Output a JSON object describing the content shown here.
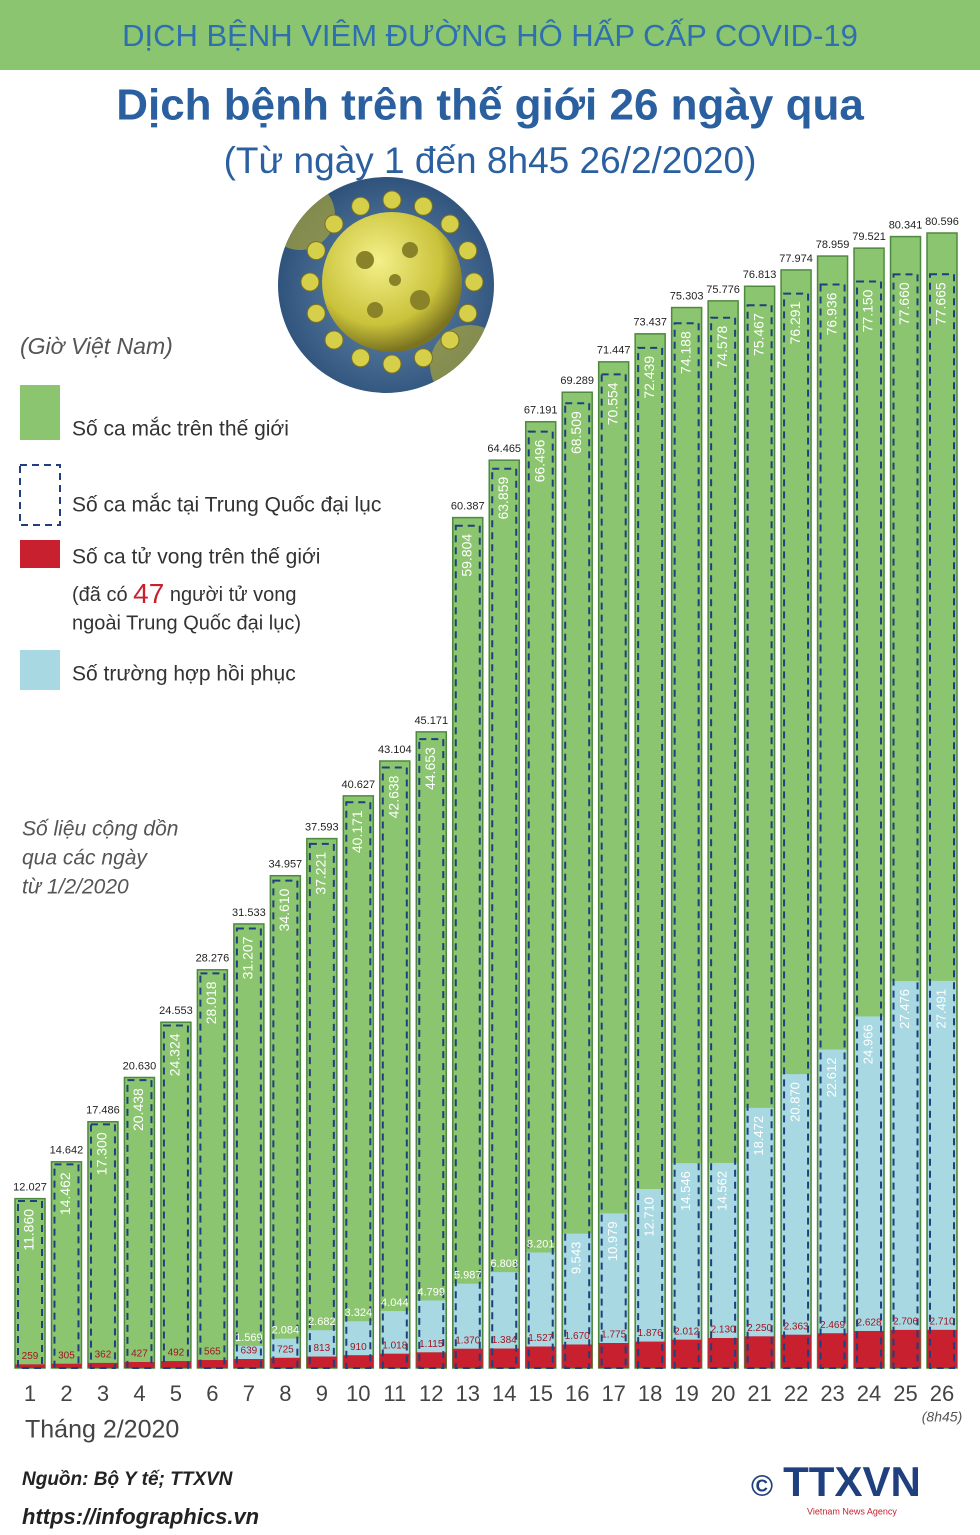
{
  "header": "DỊCH BỆNH VIÊM ĐƯỜNG HÔ HẤP CẤP COVID-19",
  "chart_data": {
    "type": "bar",
    "title": "Dịch bệnh trên thế giới 26 ngày qua",
    "subtitle": "(Từ ngày 1 đến 8h45 26/2/2020)",
    "timezone_note": "(Giờ Việt Nam)",
    "cumulative_note": [
      "Số liệu cộng dồn",
      "qua các ngày",
      "từ 1/2/2020"
    ],
    "x_label": "Tháng 2/2020",
    "last_category_note": "(8h45)",
    "categories": [
      "1",
      "2",
      "3",
      "4",
      "5",
      "6",
      "7",
      "8",
      "9",
      "10",
      "11",
      "12",
      "13",
      "14",
      "15",
      "16",
      "17",
      "18",
      "19",
      "20",
      "21",
      "22",
      "23",
      "24",
      "25",
      "26"
    ],
    "series": [
      {
        "name": "Số ca mắc trên thế giới",
        "color": "#8cc56f",
        "values": [
          12027,
          14642,
          17486,
          20630,
          24553,
          28276,
          31533,
          34957,
          37593,
          40627,
          43104,
          45171,
          60387,
          64465,
          67191,
          69289,
          71447,
          73437,
          75303,
          75776,
          76813,
          77974,
          78959,
          79521,
          80341,
          80596
        ],
        "value_labels": [
          "12.027",
          "14.642",
          "17.486",
          "20.630",
          "24.553",
          "28.276",
          "31.533",
          "34.957",
          "37.593",
          "40.627",
          "43.104",
          "45.171",
          "60.387",
          "64.465",
          "67.191",
          "69.289",
          "71.447",
          "73.437",
          "75.303",
          "75.776",
          "76.813",
          "77.974",
          "78.959",
          "79.521",
          "80.341",
          "80.596"
        ]
      },
      {
        "name": "Số ca mắc tại Trung Quốc đại lục",
        "color": "#1f3f7f",
        "values": [
          11860,
          14462,
          17300,
          20438,
          24324,
          28018,
          31207,
          34610,
          37221,
          40171,
          42638,
          44653,
          59804,
          63859,
          66496,
          68509,
          70554,
          72439,
          74188,
          74578,
          75467,
          76291,
          76936,
          77150,
          77660,
          77665
        ],
        "value_labels": [
          "11.860",
          "14.462",
          "17.300",
          "20.438",
          "24.324",
          "28.018",
          "31.207",
          "34.610",
          "37.221",
          "40.171",
          "42.638",
          "44.653",
          "59.804",
          "63.859",
          "66.496",
          "68.509",
          "70.554",
          "72.439",
          "74.188",
          "74.578",
          "75.467",
          "76.291",
          "76.936",
          "77.150",
          "77.660",
          "77.665"
        ]
      },
      {
        "name": "Số ca tử vong trên thế giới",
        "color": "#c8202f",
        "values": [
          259,
          305,
          362,
          427,
          492,
          565,
          639,
          725,
          813,
          910,
          1018,
          1115,
          1370,
          1384,
          1527,
          1670,
          1775,
          1876,
          2012,
          2130,
          2250,
          2363,
          2469,
          2628,
          2706,
          2710
        ],
        "value_labels": [
          "259",
          "305",
          "362",
          "427",
          "492",
          "565",
          "639",
          "725",
          "813",
          "910",
          "1.018",
          "1.115",
          "1.370",
          "1.384",
          "1.527",
          "1.670",
          "1.775",
          "1.876",
          "2.012",
          "2.130",
          "2.250",
          "2.363",
          "2.469",
          "2.628",
          "2.706",
          "2.710"
        ]
      },
      {
        "name": "Số trường hợp hồi phục",
        "color": "#a8d8e2",
        "values": [
          null,
          null,
          null,
          null,
          null,
          null,
          1569,
          2084,
          2682,
          3324,
          4044,
          4799,
          5987,
          6808,
          8201,
          9543,
          10979,
          12710,
          14546,
          14562,
          18472,
          20870,
          22612,
          24966,
          27476,
          27491
        ],
        "value_labels": [
          null,
          null,
          null,
          null,
          null,
          null,
          "1.569",
          "2.084",
          "2.682",
          "3.324",
          "4.044",
          "4.799",
          "5.987",
          "6.808",
          "8.201",
          "9.543",
          "10.979",
          "12.710",
          "14.546",
          "14.562",
          "18.472",
          "20.870",
          "22.612",
          "24.966",
          "27.476",
          "27.491"
        ]
      }
    ],
    "death_note": {
      "before": "(đã có",
      "count": 47,
      "after": "người tử vong",
      "line2": "ngoài Trung Quốc đại lục)"
    }
  },
  "footer": {
    "source": "Nguồn: Bộ Y tế; TTXVN",
    "url": "https://infographics.vn",
    "copyright": "©",
    "logo": "TTXVN",
    "logo_sub": "Vietnam News Agency"
  }
}
